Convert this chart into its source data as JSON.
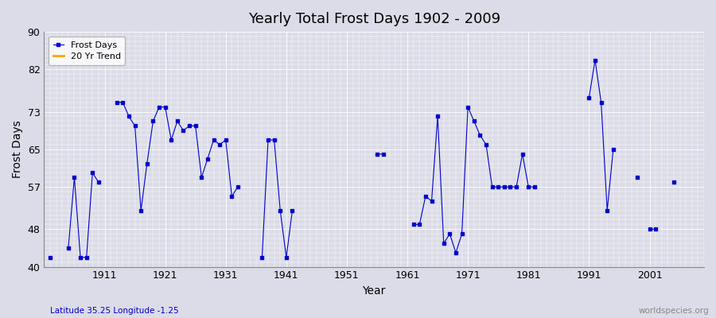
{
  "title": "Yearly Total Frost Days 1902 - 2009",
  "xlabel": "Year",
  "ylabel": "Frost Days",
  "xlim": [
    1901,
    2010
  ],
  "ylim": [
    40,
    90
  ],
  "yticks": [
    40,
    48,
    57,
    65,
    73,
    82,
    90
  ],
  "xticks": [
    1911,
    1921,
    1931,
    1941,
    1951,
    1961,
    1971,
    1981,
    1991,
    2001
  ],
  "bg_color": "#dcdce8",
  "plot_bg_color": "#dcdce8",
  "line_color": "#0000cc",
  "marker_color": "#0000cc",
  "trend_color": "#ffa500",
  "grid_color": "#ffffff",
  "frost_days_label": "Frost Days",
  "trend_label": "20 Yr Trend",
  "bottom_left_text": "Latitude 35.25 Longitude -1.25",
  "bottom_right_text": "worldspecies.org",
  "data_points": [
    [
      1902,
      42
    ],
    [
      1905,
      44
    ],
    [
      1906,
      59
    ],
    [
      1907,
      42
    ],
    [
      1908,
      42
    ],
    [
      1909,
      60
    ],
    [
      1910,
      58
    ],
    [
      1913,
      75
    ],
    [
      1914,
      75
    ],
    [
      1915,
      72
    ],
    [
      1916,
      70
    ],
    [
      1917,
      52
    ],
    [
      1918,
      62
    ],
    [
      1919,
      71
    ],
    [
      1920,
      74
    ],
    [
      1921,
      74
    ],
    [
      1922,
      67
    ],
    [
      1923,
      71
    ],
    [
      1924,
      69
    ],
    [
      1925,
      70
    ],
    [
      1926,
      70
    ],
    [
      1927,
      59
    ],
    [
      1928,
      63
    ],
    [
      1929,
      67
    ],
    [
      1930,
      66
    ],
    [
      1931,
      67
    ],
    [
      1932,
      55
    ],
    [
      1933,
      57
    ],
    [
      1937,
      42
    ],
    [
      1938,
      67
    ],
    [
      1939,
      67
    ],
    [
      1940,
      52
    ],
    [
      1941,
      42
    ],
    [
      1942,
      52
    ],
    [
      1956,
      64
    ],
    [
      1957,
      64
    ],
    [
      1962,
      49
    ],
    [
      1963,
      49
    ],
    [
      1964,
      55
    ],
    [
      1965,
      54
    ],
    [
      1966,
      72
    ],
    [
      1967,
      45
    ],
    [
      1968,
      47
    ],
    [
      1969,
      43
    ],
    [
      1970,
      47
    ],
    [
      1971,
      74
    ],
    [
      1972,
      71
    ],
    [
      1973,
      68
    ],
    [
      1974,
      66
    ],
    [
      1975,
      57
    ],
    [
      1976,
      57
    ],
    [
      1977,
      57
    ],
    [
      1978,
      57
    ],
    [
      1979,
      57
    ],
    [
      1980,
      64
    ],
    [
      1981,
      57
    ],
    [
      1982,
      57
    ],
    [
      1991,
      76
    ],
    [
      1992,
      84
    ],
    [
      1993,
      75
    ],
    [
      1994,
      52
    ],
    [
      1995,
      65
    ],
    [
      1999,
      59
    ],
    [
      2001,
      48
    ],
    [
      2002,
      48
    ],
    [
      2005,
      58
    ]
  ]
}
